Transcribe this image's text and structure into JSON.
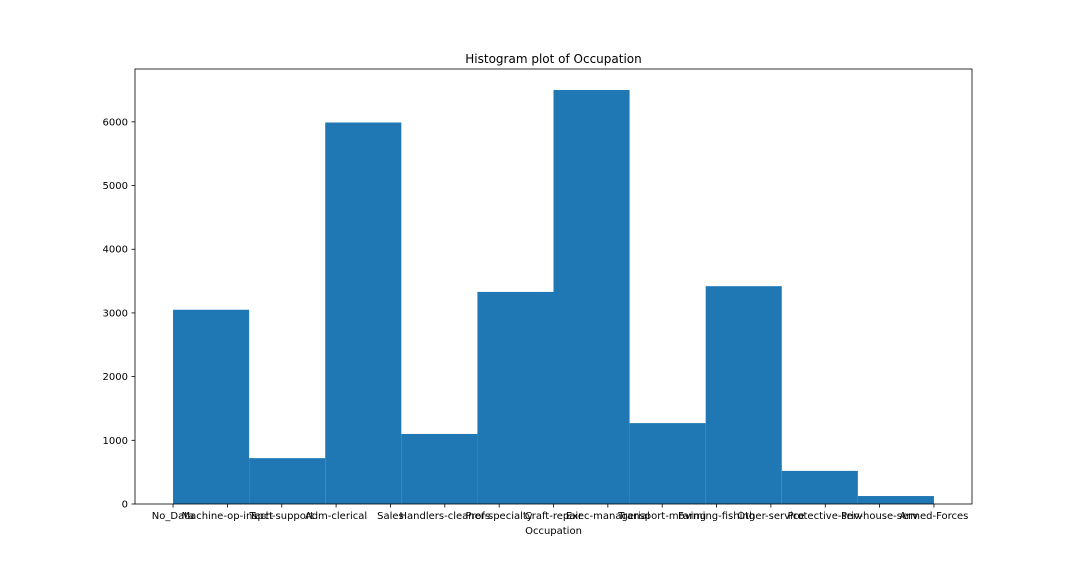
{
  "chart_data": {
    "type": "bar",
    "title": "Histogram plot of Occupation",
    "xlabel": "Occupation",
    "ylabel": "",
    "ylim": [
      0,
      6830
    ],
    "yticks": [
      0,
      1000,
      2000,
      3000,
      4000,
      5000,
      6000
    ],
    "xtick_labels": [
      "No_Data",
      "Machine-op-inspct",
      "Tech-support",
      "Adm-clerical",
      "Sales",
      "Handlers-cleaners",
      "Prof-specialty",
      "Craft-repair",
      "Exec-managerial",
      "Transport-moving",
      "Farming-fishing",
      "Other-service",
      "Protective-serv",
      "Priv-house-serv",
      "Armed-Forces"
    ],
    "bins": [
      {
        "start": 0.0,
        "end": 1.4,
        "value": 3050
      },
      {
        "start": 1.4,
        "end": 2.8,
        "value": 720
      },
      {
        "start": 2.8,
        "end": 4.2,
        "value": 5990
      },
      {
        "start": 4.2,
        "end": 5.6,
        "value": 1100
      },
      {
        "start": 5.6,
        "end": 7.0,
        "value": 3330
      },
      {
        "start": 7.0,
        "end": 8.4,
        "value": 6500
      },
      {
        "start": 8.4,
        "end": 9.8,
        "value": 1270
      },
      {
        "start": 9.8,
        "end": 11.2,
        "value": 3420
      },
      {
        "start": 11.2,
        "end": 12.6,
        "value": 520
      },
      {
        "start": 12.6,
        "end": 14.0,
        "value": 125
      }
    ],
    "xlim": [
      -0.7,
      14.7
    ],
    "bar_color": "#1f77b4",
    "grid": false,
    "legend": "none"
  }
}
